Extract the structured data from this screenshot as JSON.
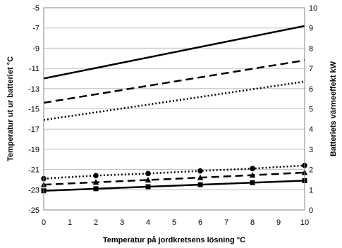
{
  "chart_data": {
    "type": "line",
    "title": "",
    "xlabel": "Temperatur på jordkretsens lösning °C",
    "ylabel_left": "Temperatur ut ur batteriet °C",
    "ylabel_right": "Batteriets värmeeffekt kW",
    "xlim": [
      0,
      10
    ],
    "ylim_left": [
      -25,
      -5
    ],
    "ylim_right": [
      0,
      10
    ],
    "x_ticks": [
      0,
      1,
      2,
      3,
      4,
      5,
      6,
      7,
      8,
      9,
      10
    ],
    "y_left_ticks": [
      -5,
      -7,
      -9,
      -11,
      -13,
      -15,
      -17,
      -19,
      -21,
      -23,
      -25
    ],
    "y_right_ticks": [
      10,
      9,
      8,
      7,
      6,
      5,
      4,
      3,
      2,
      1,
      0
    ],
    "grid": true,
    "legend": "none",
    "series": [
      {
        "axis": "left",
        "style": "solid",
        "marker": "none",
        "x": [
          0,
          10
        ],
        "y": [
          -12.0,
          -6.8
        ]
      },
      {
        "axis": "left",
        "style": "dashed",
        "marker": "none",
        "x": [
          0,
          10
        ],
        "y": [
          -14.4,
          -10.2
        ]
      },
      {
        "axis": "left",
        "style": "dotted",
        "marker": "none",
        "x": [
          0,
          10
        ],
        "y": [
          -16.1,
          -12.3
        ]
      },
      {
        "axis": "right",
        "style": "dotted",
        "marker": "circle",
        "x": [
          0,
          2,
          4,
          6,
          8,
          10
        ],
        "y": [
          1.55,
          1.7,
          1.8,
          1.93,
          2.05,
          2.2
        ]
      },
      {
        "axis": "right",
        "style": "dashed",
        "marker": "triangle",
        "x": [
          0,
          2,
          4,
          6,
          8,
          10
        ],
        "y": [
          1.25,
          1.37,
          1.48,
          1.6,
          1.72,
          1.85
        ]
      },
      {
        "axis": "right",
        "style": "solid",
        "marker": "square",
        "x": [
          0,
          2,
          4,
          6,
          8,
          10
        ],
        "y": [
          0.95,
          1.05,
          1.15,
          1.25,
          1.35,
          1.45
        ]
      }
    ],
    "colors": {
      "line": "#000000",
      "grid": "#bfbfbf",
      "frame": "#868686"
    }
  }
}
